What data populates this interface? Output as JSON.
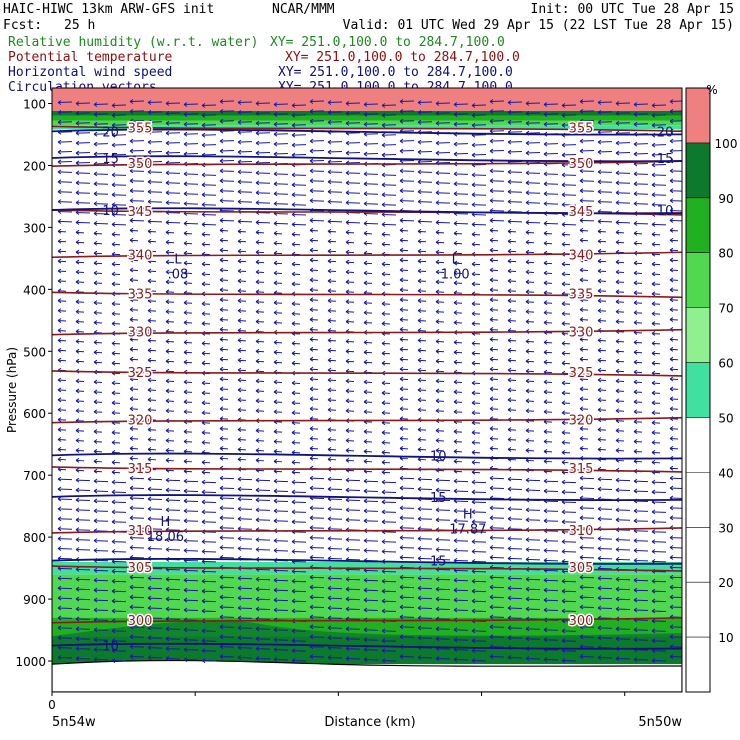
{
  "header": {
    "model": "HAIC-HIWC 13km ARW-GFS init",
    "org": "NCAR/MMM",
    "init": "Init: 00 UTC Tue 28 Apr 15",
    "fcst_label": "Fcst:",
    "fcst_value": "25 h",
    "valid": "Valid: 01 UTC Wed 29 Apr 15 (22 LST Tue 28 Apr 15)"
  },
  "fields": [
    {
      "name": "Relative humidity (w.r.t. water)",
      "xy": "XY= 251.0,100.0 to 284.7,100.0",
      "color": "#1e8a1e"
    },
    {
      "name": "Potential temperature",
      "xy": "XY= 251.0,100.0 to 284.7,100.0",
      "color": "#8b1010"
    },
    {
      "name": "Horizontal wind speed",
      "xy": "XY= 251.0,100.0 to 284.7,100.0",
      "color": "#101080"
    },
    {
      "name": "Circulation vectors",
      "xy": "XY= 251.0,100.0 to 284.7,100.0",
      "color": "#101080"
    }
  ],
  "chart_data": {
    "type": "cross-section",
    "ylabel": "Pressure (hPa)",
    "xlabel": "Distance (km)",
    "y_ticks": [
      100,
      200,
      300,
      400,
      500,
      600,
      700,
      800,
      900,
      1000
    ],
    "ylim": [
      1050,
      75
    ],
    "x_tick_label": "0",
    "x_left_label": "5n54w",
    "x_right_label": "5n50w",
    "colorbar": {
      "unit": "%",
      "ticks": [
        10,
        20,
        30,
        40,
        50,
        60,
        70,
        80,
        90,
        100
      ],
      "levels": [
        {
          "from": 0,
          "to": 50,
          "color": "#ffffff"
        },
        {
          "from": 50,
          "to": 60,
          "color": "#40e0a0"
        },
        {
          "from": 60,
          "to": 70,
          "color": "#90f090"
        },
        {
          "from": 70,
          "to": 80,
          "color": "#50d850"
        },
        {
          "from": 80,
          "to": 90,
          "color": "#20b020"
        },
        {
          "from": 90,
          "to": 100,
          "color": "#0c7a2c"
        },
        {
          "from": 100,
          "to": 110,
          "color": "#f08080"
        }
      ]
    },
    "theta_contours": [
      {
        "label": "355",
        "p": 140
      },
      {
        "label": "350",
        "p": 198
      },
      {
        "label": "345",
        "p": 275
      },
      {
        "label": "340",
        "p": 345
      },
      {
        "label": "335",
        "p": 408
      },
      {
        "label": "330",
        "p": 470
      },
      {
        "label": "325",
        "p": 535
      },
      {
        "label": "320",
        "p": 612
      },
      {
        "label": "315",
        "p": 690
      },
      {
        "label": "310",
        "p": 790
      },
      {
        "label": "305",
        "p": 850
      },
      {
        "label": "300",
        "p": 935
      }
    ],
    "wind_contours": [
      {
        "label": "20",
        "p": 145
      },
      {
        "label": "15",
        "p": 188
      },
      {
        "label": "10",
        "p": 272
      },
      {
        "label": "10",
        "p": 668
      },
      {
        "label": "15",
        "p": 735
      },
      {
        "label": "15",
        "p": 838
      },
      {
        "label": "10",
        "p": 975
      }
    ],
    "extrema": [
      {
        "type": "L",
        "value": ".08",
        "x": 0.2,
        "p": 358
      },
      {
        "type": "L",
        "value": "1.00",
        "x": 0.64,
        "p": 358
      },
      {
        "type": "H",
        "value": "18.06",
        "x": 0.18,
        "p": 782
      },
      {
        "type": "H",
        "value": "17.87",
        "x": 0.66,
        "p": 770
      }
    ],
    "rh_regions": [
      {
        "p_top": 75,
        "p_bot": 112,
        "rh": 100
      },
      {
        "p_top": 112,
        "p_bot": 120,
        "rh": 90
      },
      {
        "p_top": 120,
        "p_bot": 128,
        "rh": 80
      },
      {
        "p_top": 128,
        "p_bot": 135,
        "rh": 70
      },
      {
        "p_top": 135,
        "p_bot": 142,
        "rh": 55
      },
      {
        "p_top": 840,
        "p_bot": 860,
        "rh": 55
      },
      {
        "p_top": 860,
        "p_bot": 930,
        "rh": 70
      },
      {
        "p_top": 930,
        "p_bot": 960,
        "rh": 80
      },
      {
        "p_top": 960,
        "p_bot": 1005,
        "rh": 95
      }
    ]
  }
}
